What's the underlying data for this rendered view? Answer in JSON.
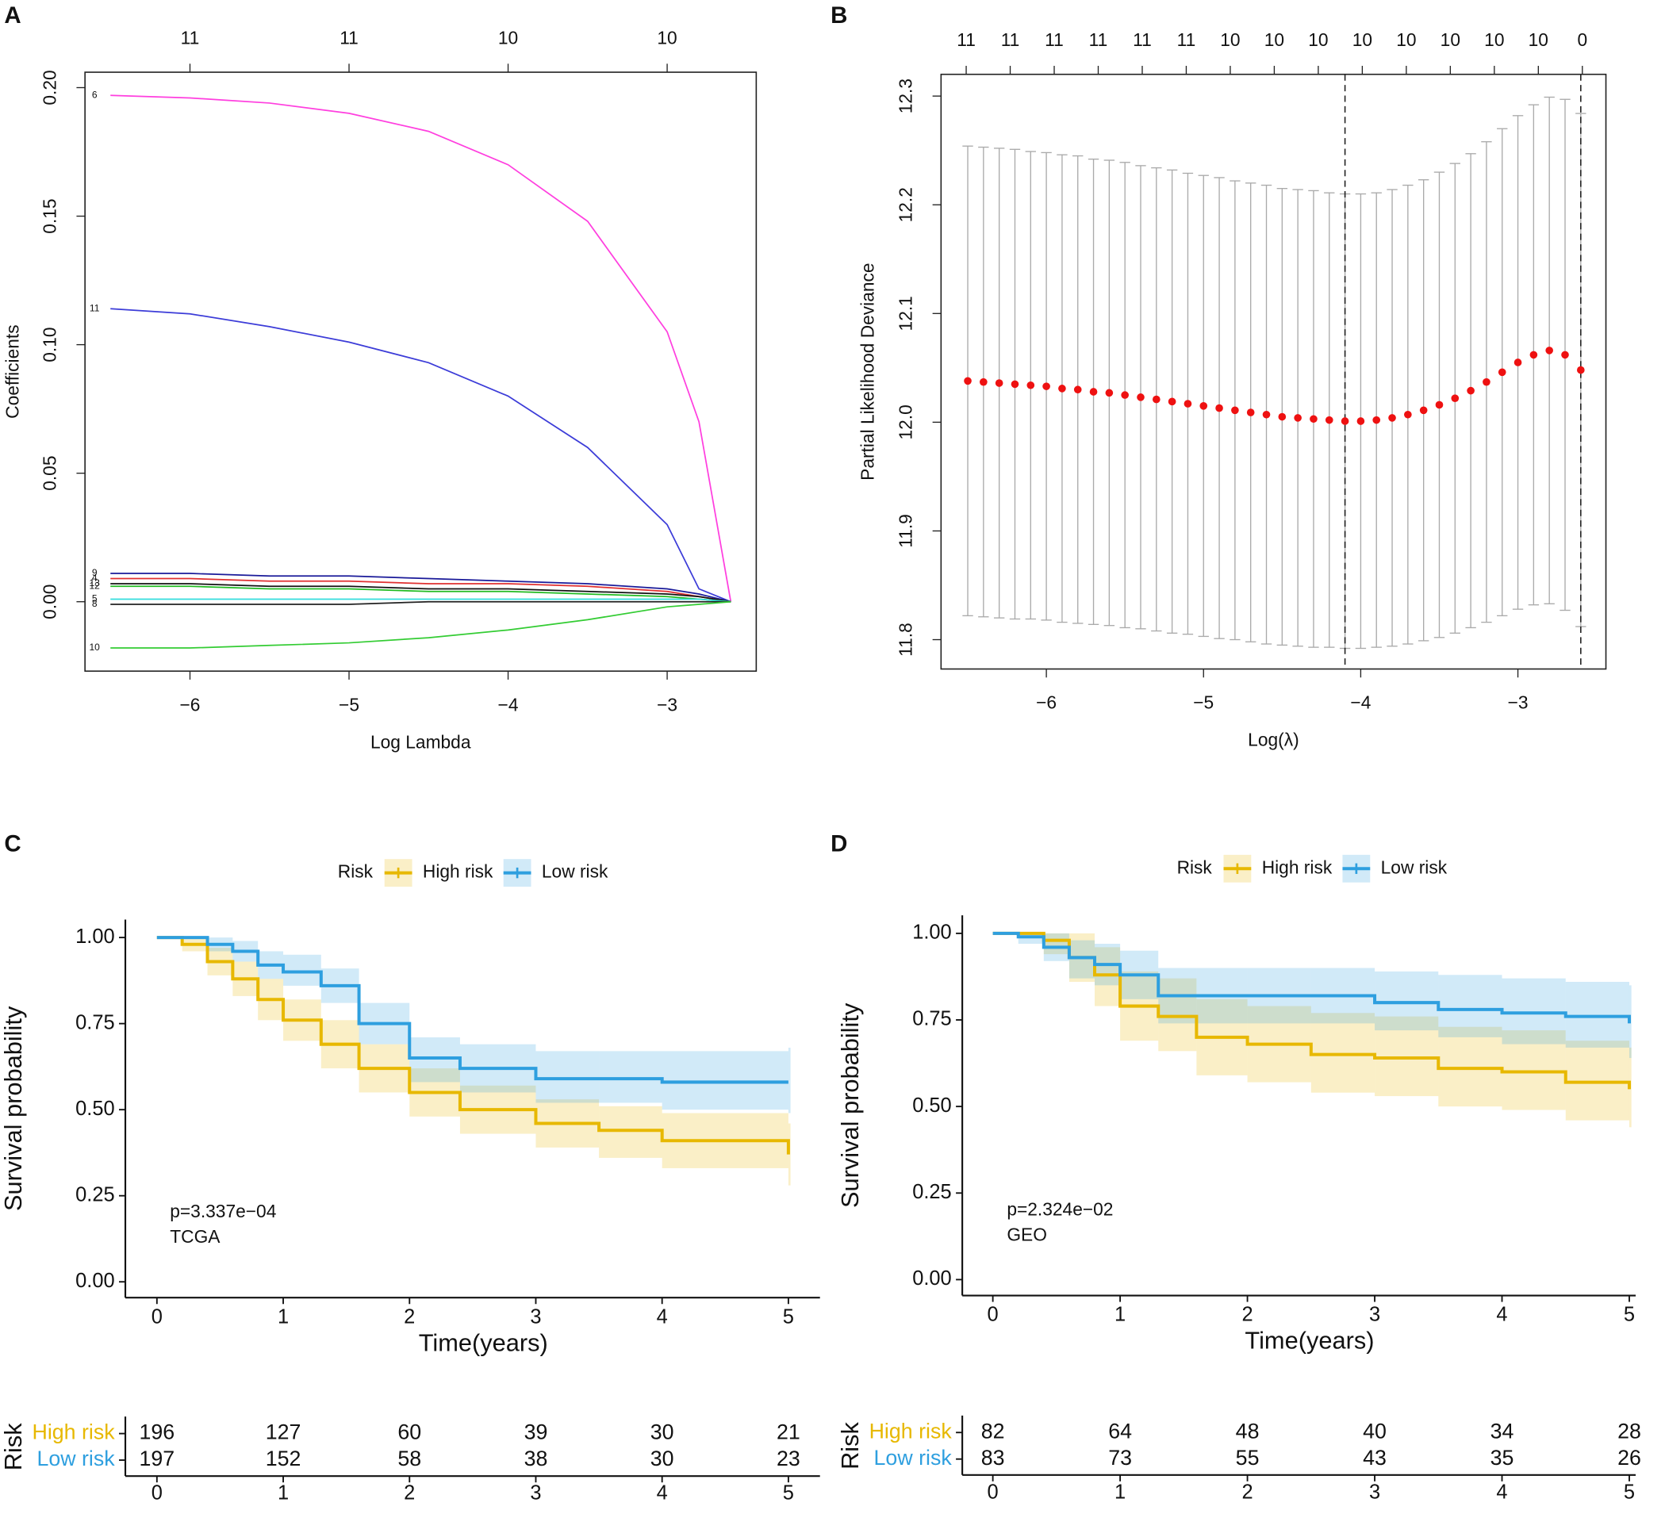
{
  "chart_data": [
    {
      "type": "line",
      "panel": "A",
      "xlabel": "Log Lambda",
      "ylabel": "Coefficients",
      "xlim": [
        -6.66,
        -2.44
      ],
      "ylim": [
        -0.027,
        0.206
      ],
      "xticks": [
        {
          "value": -6,
          "label": "−6"
        },
        {
          "value": -5,
          "label": "−5"
        },
        {
          "value": -4,
          "label": "−4"
        },
        {
          "value": -3,
          "label": "−3"
        }
      ],
      "x2ticks": [
        {
          "value": -6,
          "label": "11"
        },
        {
          "value": -5,
          "label": "11"
        },
        {
          "value": -4,
          "label": "10"
        },
        {
          "value": -3,
          "label": "10"
        }
      ],
      "yticks": [
        {
          "value": 0,
          "label": "0.00"
        },
        {
          "value": 0.05,
          "label": "0.05"
        },
        {
          "value": 0.1,
          "label": "0.10"
        },
        {
          "value": 0.15,
          "label": "0.15"
        },
        {
          "value": 0.2,
          "label": "0.20"
        }
      ],
      "x": [
        -6.5,
        -6,
        -5.5,
        -5,
        -4.5,
        -4,
        -3.5,
        -3,
        -2.8,
        -2.6
      ],
      "series": [
        {
          "name": "6",
          "color": "#ff3fdf",
          "values": [
            0.197,
            0.196,
            0.194,
            0.19,
            0.183,
            0.17,
            0.148,
            0.105,
            0.07,
            0
          ]
        },
        {
          "name": "11",
          "color": "#3c3cd8",
          "values": [
            0.114,
            0.112,
            0.107,
            0.101,
            0.093,
            0.08,
            0.06,
            0.03,
            0.005,
            0
          ]
        },
        {
          "name": "9",
          "color": "#1a1a99",
          "values": [
            0.011,
            0.011,
            0.01,
            0.01,
            0.009,
            0.008,
            0.007,
            0.005,
            0.003,
            0
          ]
        },
        {
          "name": "4",
          "color": "#e03030",
          "values": [
            0.009,
            0.009,
            0.008,
            0.008,
            0.007,
            0.007,
            0.006,
            0.004,
            0.002,
            0
          ]
        },
        {
          "name": "13",
          "color": "#111111",
          "values": [
            0.007,
            0.007,
            0.006,
            0.006,
            0.005,
            0.005,
            0.004,
            0.003,
            0.002,
            0
          ]
        },
        {
          "name": "12",
          "color": "#22bb22",
          "values": [
            0.006,
            0.006,
            0.005,
            0.005,
            0.004,
            0.004,
            0.003,
            0.002,
            0.001,
            0
          ]
        },
        {
          "name": "5",
          "color": "#33dddd",
          "values": [
            0.001,
            0.001,
            0.001,
            0.001,
            0.001,
            0.001,
            0.001,
            0.001,
            0.001,
            0
          ]
        },
        {
          "name": "8",
          "color": "#222222",
          "values": [
            -0.001,
            -0.001,
            -0.001,
            -0.001,
            0,
            0,
            0,
            0,
            0,
            0
          ]
        },
        {
          "name": "10",
          "color": "#33cc33",
          "values": [
            -0.018,
            -0.018,
            -0.017,
            -0.016,
            -0.014,
            -0.011,
            -0.007,
            -0.002,
            -0.001,
            0
          ]
        }
      ]
    },
    {
      "type": "errorbar",
      "panel": "B",
      "xlabel": "Log(λ)",
      "ylabel": "Partial Likelihood Deviance",
      "xlim": [
        -6.67,
        -2.44
      ],
      "ylim": [
        11.773,
        12.32
      ],
      "xticks": [
        {
          "value": -6,
          "label": "−6"
        },
        {
          "value": -5,
          "label": "−5"
        },
        {
          "value": -4,
          "label": "−4"
        },
        {
          "value": -3,
          "label": "−3"
        }
      ],
      "x2ticks": [
        {
          "value": -6.51,
          "label": "11"
        },
        {
          "value": -6.23,
          "label": "11"
        },
        {
          "value": -5.95,
          "label": "11"
        },
        {
          "value": -5.67,
          "label": "11"
        },
        {
          "value": -5.39,
          "label": "11"
        },
        {
          "value": -5.11,
          "label": "11"
        },
        {
          "value": -4.83,
          "label": "10"
        },
        {
          "value": -4.55,
          "label": "10"
        },
        {
          "value": -4.27,
          "label": "10"
        },
        {
          "value": -3.99,
          "label": "10"
        },
        {
          "value": -3.71,
          "label": "10"
        },
        {
          "value": -3.43,
          "label": "10"
        },
        {
          "value": -3.15,
          "label": "10"
        },
        {
          "value": -2.87,
          "label": "10"
        },
        {
          "value": -2.59,
          "label": "0"
        }
      ],
      "yticks": [
        {
          "value": 11.8,
          "label": "11.8"
        },
        {
          "value": 11.9,
          "label": "11.9"
        },
        {
          "value": 12,
          "label": "12.0"
        },
        {
          "value": 12.1,
          "label": "12.1"
        },
        {
          "value": 12.2,
          "label": "12.2"
        },
        {
          "value": 12.3,
          "label": "12.3"
        }
      ],
      "vlines": [
        -4.1,
        -2.6
      ],
      "color": "#ee1111",
      "x": [
        -6.5,
        -6.4,
        -6.3,
        -6.2,
        -6.1,
        -6.0,
        -5.9,
        -5.8,
        -5.7,
        -5.6,
        -5.5,
        -5.4,
        -5.3,
        -5.2,
        -5.1,
        -5.0,
        -4.9,
        -4.8,
        -4.7,
        -4.6,
        -4.5,
        -4.4,
        -4.3,
        -4.2,
        -4.1,
        -4.0,
        -3.9,
        -3.8,
        -3.7,
        -3.6,
        -3.5,
        -3.4,
        -3.3,
        -3.2,
        -3.1,
        -3.0,
        -2.9,
        -2.8,
        -2.7,
        -2.6
      ],
      "values": [
        12.038,
        12.037,
        12.036,
        12.035,
        12.034,
        12.033,
        12.031,
        12.03,
        12.028,
        12.027,
        12.025,
        12.023,
        12.021,
        12.019,
        12.017,
        12.015,
        12.013,
        12.011,
        12.009,
        12.007,
        12.005,
        12.004,
        12.003,
        12.002,
        12.001,
        12.001,
        12.002,
        12.004,
        12.007,
        12.011,
        12.016,
        12.022,
        12.029,
        12.037,
        12.046,
        12.055,
        12.062,
        12.066,
        12.062,
        12.048
      ],
      "errors": [
        0.216,
        0.216,
        0.216,
        0.216,
        0.215,
        0.215,
        0.215,
        0.215,
        0.214,
        0.214,
        0.214,
        0.213,
        0.213,
        0.213,
        0.212,
        0.212,
        0.212,
        0.211,
        0.211,
        0.211,
        0.21,
        0.21,
        0.21,
        0.209,
        0.209,
        0.209,
        0.209,
        0.21,
        0.211,
        0.212,
        0.214,
        0.216,
        0.218,
        0.221,
        0.224,
        0.227,
        0.23,
        0.233,
        0.235,
        0.236
      ]
    },
    {
      "type": "survival",
      "panel": "C",
      "xlabel": "Time(years)",
      "ylabel": "Survival probability",
      "legend_title": "Risk",
      "xlim": [
        -0.25,
        5.25
      ],
      "ylim": [
        -0.046,
        1.052
      ],
      "xticks": [
        0,
        1,
        2,
        3,
        4,
        5
      ],
      "yticks": [
        {
          "value": 0,
          "label": "0.00"
        },
        {
          "value": 0.25,
          "label": "0.25"
        },
        {
          "value": 0.5,
          "label": "0.50"
        },
        {
          "value": 0.75,
          "label": "0.75"
        },
        {
          "value": 1,
          "label": "1.00"
        }
      ],
      "annotations": [
        "p=3.337e−04",
        "TCGA"
      ],
      "x": [
        0,
        0.2,
        0.4,
        0.6,
        0.8,
        1.0,
        1.3,
        1.6,
        2.0,
        2.4,
        3.0,
        3.5,
        4.0,
        5.0
      ],
      "series": [
        {
          "name": "High risk",
          "color": "#E7B800",
          "values": [
            1,
            0.98,
            0.93,
            0.88,
            0.82,
            0.76,
            0.69,
            0.62,
            0.55,
            0.5,
            0.46,
            0.44,
            0.41,
            0.37
          ],
          "lower": [
            1,
            0.96,
            0.89,
            0.83,
            0.76,
            0.7,
            0.62,
            0.55,
            0.48,
            0.43,
            0.39,
            0.36,
            0.33,
            0.28
          ],
          "upper": [
            1,
            1,
            0.97,
            0.93,
            0.88,
            0.82,
            0.76,
            0.69,
            0.62,
            0.57,
            0.53,
            0.51,
            0.49,
            0.46
          ]
        },
        {
          "name": "Low risk",
          "color": "#2E9FDF",
          "values": [
            1,
            1,
            0.98,
            0.96,
            0.92,
            0.9,
            0.86,
            0.75,
            0.65,
            0.62,
            0.59,
            0.59,
            0.58,
            0.58
          ],
          "lower": [
            1,
            1,
            0.96,
            0.93,
            0.88,
            0.86,
            0.81,
            0.69,
            0.58,
            0.55,
            0.52,
            0.52,
            0.5,
            0.49
          ],
          "upper": [
            1,
            1,
            1,
            0.99,
            0.96,
            0.95,
            0.91,
            0.81,
            0.71,
            0.69,
            0.67,
            0.67,
            0.67,
            0.68
          ]
        }
      ],
      "risk_table": {
        "label": "Risk",
        "counts": [
          [
            196,
            127,
            60,
            39,
            30,
            21
          ],
          [
            197,
            152,
            58,
            38,
            30,
            23
          ]
        ]
      }
    },
    {
      "type": "survival",
      "panel": "D",
      "xlabel": "Time(years)",
      "ylabel": "Survival probability",
      "legend_title": "Risk",
      "xlim": [
        -0.24,
        5.05
      ],
      "ylim": [
        -0.046,
        1.052
      ],
      "xticks": [
        0,
        1,
        2,
        3,
        4,
        5
      ],
      "yticks": [
        {
          "value": 0,
          "label": "0.00"
        },
        {
          "value": 0.25,
          "label": "0.25"
        },
        {
          "value": 0.5,
          "label": "0.50"
        },
        {
          "value": 0.75,
          "label": "0.75"
        },
        {
          "value": 1,
          "label": "1.00"
        }
      ],
      "annotations": [
        "p=2.324e−02",
        "GEO"
      ],
      "x": [
        0,
        0.2,
        0.4,
        0.6,
        0.8,
        1.0,
        1.3,
        1.6,
        2.0,
        2.5,
        3.0,
        3.5,
        4.0,
        4.5,
        5.0
      ],
      "series": [
        {
          "name": "High risk",
          "color": "#E7B800",
          "values": [
            1,
            1,
            0.98,
            0.93,
            0.88,
            0.79,
            0.76,
            0.7,
            0.68,
            0.65,
            0.64,
            0.61,
            0.6,
            0.57,
            0.55
          ],
          "lower": [
            1,
            1,
            0.94,
            0.86,
            0.79,
            0.69,
            0.66,
            0.59,
            0.57,
            0.54,
            0.53,
            0.5,
            0.49,
            0.46,
            0.44
          ],
          "upper": [
            1,
            1,
            1,
            1,
            0.96,
            0.89,
            0.87,
            0.81,
            0.79,
            0.77,
            0.76,
            0.73,
            0.72,
            0.69,
            0.67
          ]
        },
        {
          "name": "Low risk",
          "color": "#2E9FDF",
          "values": [
            1,
            0.99,
            0.96,
            0.93,
            0.91,
            0.88,
            0.82,
            0.82,
            0.82,
            0.82,
            0.8,
            0.78,
            0.77,
            0.76,
            0.74
          ],
          "lower": [
            1,
            0.97,
            0.92,
            0.87,
            0.85,
            0.81,
            0.74,
            0.74,
            0.74,
            0.74,
            0.72,
            0.7,
            0.68,
            0.67,
            0.64
          ],
          "upper": [
            1,
            1,
            1,
            0.98,
            0.97,
            0.95,
            0.9,
            0.9,
            0.9,
            0.9,
            0.89,
            0.88,
            0.87,
            0.86,
            0.85
          ]
        }
      ],
      "risk_table": {
        "label": "Risk",
        "counts": [
          [
            82,
            64,
            48,
            40,
            34,
            28
          ],
          [
            83,
            73,
            55,
            43,
            35,
            26
          ]
        ]
      }
    }
  ]
}
